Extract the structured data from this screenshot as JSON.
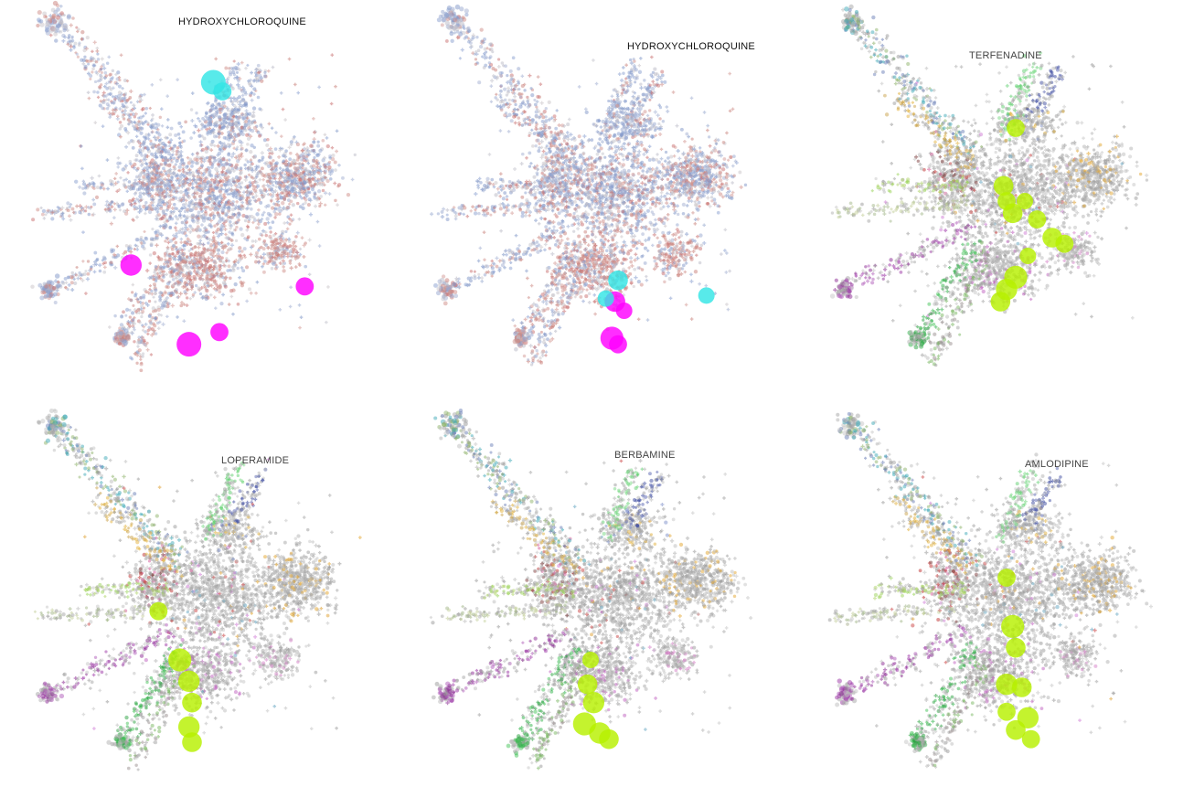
{
  "chart_data": [
    {
      "type": "scatter",
      "title": "HYDROXYCHLOROQUINE",
      "scheme": "diverging",
      "highlights": [
        {
          "x": 0.27,
          "y": 0.26,
          "r": 2.6,
          "color": "#ff00ff"
        },
        {
          "x": 0.84,
          "y": 0.19,
          "r": 2.2,
          "color": "#ff00ff"
        },
        {
          "x": 0.46,
          "y": 0.0,
          "r": 3.0,
          "color": "#ff00ff"
        },
        {
          "x": 0.56,
          "y": 0.04,
          "r": 2.2,
          "color": "#ff00ff"
        },
        {
          "x": 0.54,
          "y": 0.86,
          "r": 3.0,
          "color": "#33e5e5"
        },
        {
          "x": 0.57,
          "y": 0.83,
          "r": 2.2,
          "color": "#33e5e5"
        }
      ]
    },
    {
      "type": "scatter",
      "title": "HYDROXYCHLOROQUINE",
      "scheme": "diverging",
      "highlights": [
        {
          "x": 0.55,
          "y": 0.14,
          "r": 2.5,
          "color": "#ff00ff"
        },
        {
          "x": 0.54,
          "y": 0.02,
          "r": 2.8,
          "color": "#ff00ff"
        },
        {
          "x": 0.56,
          "y": 0.0,
          "r": 2.2,
          "color": "#ff00ff"
        },
        {
          "x": 0.58,
          "y": 0.11,
          "r": 2.0,
          "color": "#ff00ff"
        },
        {
          "x": 0.56,
          "y": 0.21,
          "r": 2.4,
          "color": "#33e5e5"
        },
        {
          "x": 0.52,
          "y": 0.15,
          "r": 2.0,
          "color": "#33e5e5"
        },
        {
          "x": 0.85,
          "y": 0.16,
          "r": 2.0,
          "color": "#33e5e5"
        }
      ]
    },
    {
      "type": "scatter",
      "title": "TERFENADINE",
      "scheme": "clusters",
      "highlights": [
        {
          "x": 0.56,
          "y": 0.71,
          "r": 2.2,
          "color": "#b7f000"
        },
        {
          "x": 0.52,
          "y": 0.52,
          "r": 2.4,
          "color": "#b7f000"
        },
        {
          "x": 0.53,
          "y": 0.47,
          "r": 2.2,
          "color": "#b7f000"
        },
        {
          "x": 0.55,
          "y": 0.43,
          "r": 2.4,
          "color": "#b7f000"
        },
        {
          "x": 0.59,
          "y": 0.47,
          "r": 2.0,
          "color": "#b7f000"
        },
        {
          "x": 0.63,
          "y": 0.41,
          "r": 2.2,
          "color": "#b7f000"
        },
        {
          "x": 0.68,
          "y": 0.35,
          "r": 2.4,
          "color": "#b7f000"
        },
        {
          "x": 0.72,
          "y": 0.33,
          "r": 2.2,
          "color": "#b7f000"
        },
        {
          "x": 0.6,
          "y": 0.29,
          "r": 2.0,
          "color": "#b7f000"
        },
        {
          "x": 0.56,
          "y": 0.22,
          "r": 2.8,
          "color": "#b7f000"
        },
        {
          "x": 0.53,
          "y": 0.18,
          "r": 2.6,
          "color": "#b7f000"
        },
        {
          "x": 0.51,
          "y": 0.14,
          "r": 2.4,
          "color": "#b7f000"
        }
      ]
    },
    {
      "type": "scatter",
      "title": "LOPERAMIDE",
      "scheme": "clusters",
      "highlights": [
        {
          "x": 0.36,
          "y": 0.45,
          "r": 2.2,
          "color": "#b7f000"
        },
        {
          "x": 0.43,
          "y": 0.29,
          "r": 2.8,
          "color": "#b7f000"
        },
        {
          "x": 0.46,
          "y": 0.22,
          "r": 2.6,
          "color": "#b7f000"
        },
        {
          "x": 0.47,
          "y": 0.15,
          "r": 2.4,
          "color": "#b7f000"
        },
        {
          "x": 0.46,
          "y": 0.07,
          "r": 2.6,
          "color": "#b7f000"
        },
        {
          "x": 0.47,
          "y": 0.02,
          "r": 2.4,
          "color": "#b7f000"
        }
      ]
    },
    {
      "type": "scatter",
      "title": "BERBAMINE",
      "scheme": "clusters",
      "highlights": [
        {
          "x": 0.47,
          "y": 0.29,
          "r": 2.0,
          "color": "#b7f000"
        },
        {
          "x": 0.46,
          "y": 0.21,
          "r": 2.4,
          "color": "#b7f000"
        },
        {
          "x": 0.48,
          "y": 0.15,
          "r": 2.6,
          "color": "#b7f000"
        },
        {
          "x": 0.45,
          "y": 0.08,
          "r": 2.8,
          "color": "#b7f000"
        },
        {
          "x": 0.5,
          "y": 0.05,
          "r": 2.6,
          "color": "#b7f000"
        },
        {
          "x": 0.53,
          "y": 0.03,
          "r": 2.4,
          "color": "#b7f000"
        }
      ]
    },
    {
      "type": "scatter",
      "title": "AMLODIPINE",
      "scheme": "clusters",
      "highlights": [
        {
          "x": 0.53,
          "y": 0.56,
          "r": 2.2,
          "color": "#b7f000"
        },
        {
          "x": 0.55,
          "y": 0.4,
          "r": 2.8,
          "color": "#b7f000"
        },
        {
          "x": 0.56,
          "y": 0.33,
          "r": 2.4,
          "color": "#b7f000"
        },
        {
          "x": 0.53,
          "y": 0.21,
          "r": 2.6,
          "color": "#b7f000"
        },
        {
          "x": 0.58,
          "y": 0.2,
          "r": 2.4,
          "color": "#b7f000"
        },
        {
          "x": 0.53,
          "y": 0.12,
          "r": 2.2,
          "color": "#b7f000"
        },
        {
          "x": 0.6,
          "y": 0.1,
          "r": 2.6,
          "color": "#b7f000"
        },
        {
          "x": 0.56,
          "y": 0.06,
          "r": 2.4,
          "color": "#b7f000"
        },
        {
          "x": 0.61,
          "y": 0.03,
          "r": 2.2,
          "color": "#b7f000"
        }
      ]
    }
  ]
}
